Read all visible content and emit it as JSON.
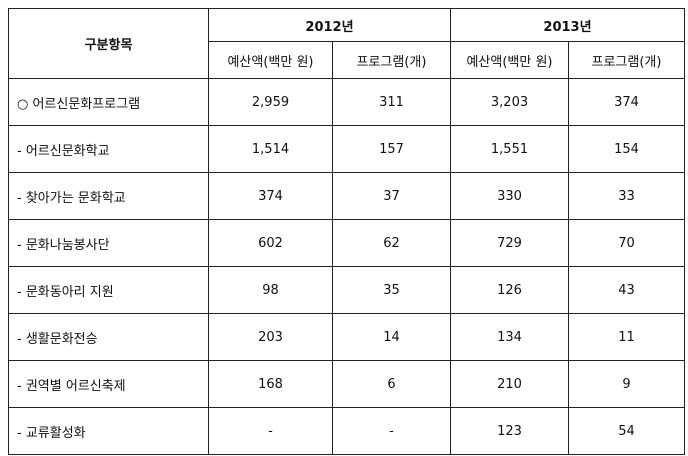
{
  "table": {
    "item_header": "구분항목",
    "years": [
      "2012년",
      "2013년"
    ],
    "sub_headers": [
      "예산액(백만 원)",
      "프로그램(개)",
      "예산액(백만 원)",
      "프로그램(개)"
    ],
    "rows": [
      {
        "item": "○ 어르신문화프로그램",
        "values": [
          "2,959",
          "311",
          "3,203",
          "374"
        ]
      },
      {
        "item": "- 어르신문화학교",
        "values": [
          "1,514",
          "157",
          "1,551",
          "154"
        ]
      },
      {
        "item": "- 찾아가는 문화학교",
        "values": [
          "374",
          "37",
          "330",
          "33"
        ]
      },
      {
        "item": "- 문화나눔봉사단",
        "values": [
          "602",
          "62",
          "729",
          "70"
        ]
      },
      {
        "item": "- 문화동아리 지원",
        "values": [
          "98",
          "35",
          "126",
          "43"
        ]
      },
      {
        "item": "- 생활문화전승",
        "values": [
          "203",
          "14",
          "134",
          "11"
        ]
      },
      {
        "item": "- 권역별 어르신축제",
        "values": [
          "168",
          "6",
          "210",
          "9"
        ]
      },
      {
        "item": "- 교류활성화",
        "values": [
          "-",
          "-",
          "123",
          "54"
        ]
      }
    ]
  }
}
